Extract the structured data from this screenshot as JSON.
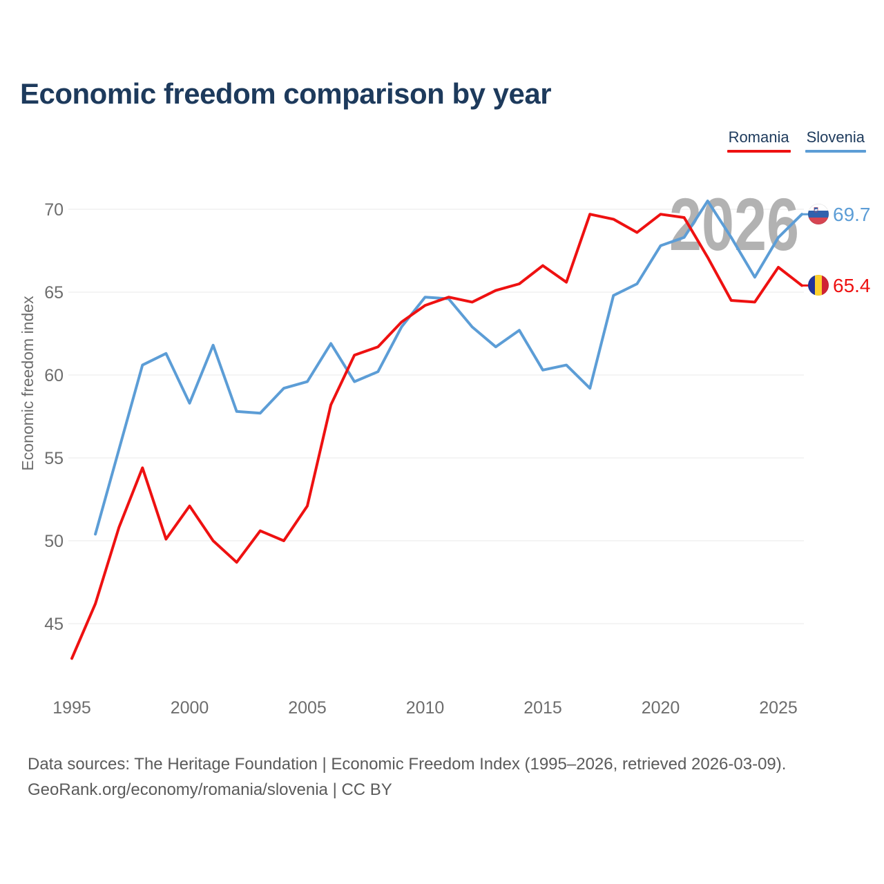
{
  "title": "Economic freedom comparison by year",
  "legend": {
    "items": [
      {
        "label": "Romania",
        "color": "#ee1111"
      },
      {
        "label": "Slovenia",
        "color": "#5c9dd6"
      }
    ]
  },
  "watermark": "2026",
  "end_labels": {
    "slovenia": {
      "value": "69.7",
      "color": "#5c9dd6"
    },
    "romania": {
      "value": "65.4",
      "color": "#ee1111"
    }
  },
  "footer": {
    "line1": "Data sources: The Heritage Foundation | Economic Freedom Index (1995–2026, retrieved 2026-03-09).",
    "line2": "GeoRank.org/economy/romania/slovenia | CC BY"
  },
  "chart_data": {
    "type": "line",
    "x": [
      1995,
      1996,
      1997,
      1998,
      1999,
      2000,
      2001,
      2002,
      2003,
      2004,
      2005,
      2006,
      2007,
      2008,
      2009,
      2010,
      2011,
      2012,
      2013,
      2014,
      2015,
      2016,
      2017,
      2018,
      2019,
      2020,
      2021,
      2022,
      2023,
      2024,
      2025,
      2026
    ],
    "xticks": [
      1995,
      2000,
      2005,
      2010,
      2015,
      2020,
      2025
    ],
    "yticks": [
      45,
      50,
      55,
      60,
      65,
      70
    ],
    "xlim": [
      1995,
      2026
    ],
    "ylim": [
      42,
      71.5
    ],
    "xlabel": "",
    "ylabel": "Economic freedom index",
    "grid": "horizontal",
    "legend_position": "top-right",
    "series": [
      {
        "name": "Romania",
        "color": "#ee1111",
        "values": [
          42.9,
          46.2,
          50.8,
          54.4,
          50.1,
          52.1,
          50.0,
          48.7,
          50.6,
          50.0,
          52.1,
          58.2,
          61.2,
          61.7,
          63.2,
          64.2,
          64.7,
          64.4,
          65.1,
          65.5,
          66.6,
          65.6,
          69.7,
          69.4,
          68.6,
          69.7,
          69.5,
          67.1,
          64.5,
          64.4,
          66.5,
          65.4
        ]
      },
      {
        "name": "Slovenia",
        "color": "#5c9dd6",
        "values": [
          null,
          50.4,
          55.5,
          60.6,
          61.3,
          58.3,
          61.8,
          57.8,
          57.7,
          59.2,
          59.6,
          61.9,
          59.6,
          60.2,
          62.9,
          64.7,
          64.6,
          62.9,
          61.7,
          62.7,
          60.3,
          60.6,
          59.2,
          64.8,
          65.5,
          67.8,
          68.3,
          70.5,
          68.3,
          65.9,
          68.3,
          69.7
        ]
      }
    ]
  }
}
